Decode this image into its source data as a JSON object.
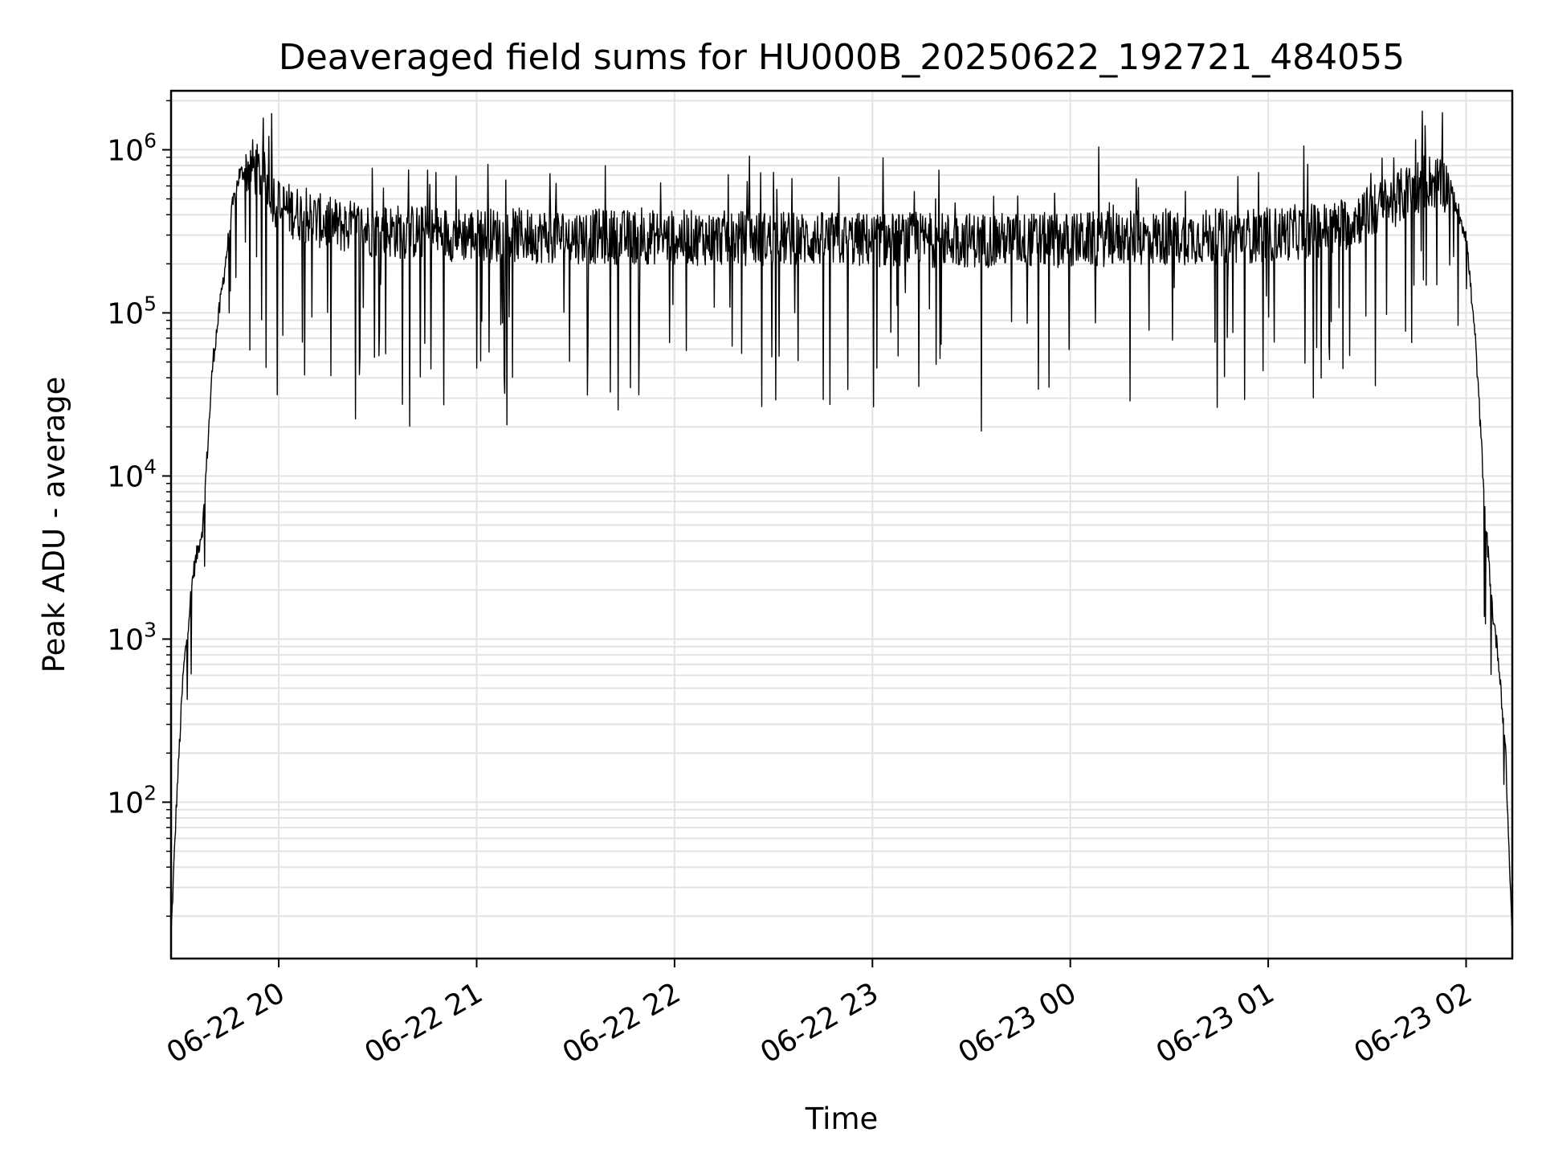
{
  "chart_data": {
    "type": "line",
    "title": "Deaveraged field sums for HU000B_20250622_192721_484055",
    "xlabel": "Time",
    "ylabel": "Peak ADU - average",
    "yscale": "log",
    "grid": true,
    "legend": "none",
    "xlim": [
      "2025-06-22 19:27:21",
      "2025-06-23 02:14:00"
    ],
    "ylim": [
      11,
      2300000
    ],
    "x_ticks": [
      {
        "value": "2025-06-22 20:00",
        "label": "06-22 20"
      },
      {
        "value": "2025-06-22 21:00",
        "label": "06-22 21"
      },
      {
        "value": "2025-06-22 22:00",
        "label": "06-22 22"
      },
      {
        "value": "2025-06-22 23:00",
        "label": "06-22 23"
      },
      {
        "value": "2025-06-23 00:00",
        "label": "06-23 00"
      },
      {
        "value": "2025-06-23 01:00",
        "label": "06-23 01"
      },
      {
        "value": "2025-06-23 02:00",
        "label": "06-23 02"
      }
    ],
    "y_ticks": [
      {
        "value": 100,
        "base": "10",
        "exp": "2"
      },
      {
        "value": 1000,
        "base": "10",
        "exp": "3"
      },
      {
        "value": 10000,
        "base": "10",
        "exp": "4"
      },
      {
        "value": 100000,
        "base": "10",
        "exp": "5"
      },
      {
        "value": 1000000,
        "base": "10",
        "exp": "6"
      }
    ],
    "series": [
      {
        "color": "#000000",
        "envelope": {
          "description_free": true,
          "x": [
            "2025-06-22 19:27:21",
            "2025-06-22 19:29",
            "2025-06-22 19:31",
            "2025-06-22 19:34",
            "2025-06-22 19:37",
            "2025-06-22 19:40",
            "2025-06-22 19:43",
            "2025-06-22 19:46",
            "2025-06-22 19:48",
            "2025-06-22 19:52",
            "2025-06-22 19:56",
            "2025-06-22 20:00",
            "2025-06-22 20:15",
            "2025-06-22 20:30",
            "2025-06-22 21:00",
            "2025-06-22 22:00",
            "2025-06-22 23:00",
            "2025-06-23 00:00",
            "2025-06-23 01:00",
            "2025-06-23 01:20",
            "2025-06-23 01:35",
            "2025-06-23 01:48",
            "2025-06-23 01:55",
            "2025-06-23 02:00",
            "2025-06-23 02:03",
            "2025-06-23 02:06",
            "2025-06-23 02:08",
            "2025-06-23 02:10",
            "2025-06-23 02:12",
            "2025-06-23 02:13",
            "2025-06-23 02:14"
          ],
          "y": [
            15,
            100,
            600,
            2500,
            5000,
            50000,
            150000,
            450000,
            700000,
            800000,
            650000,
            450000,
            350000,
            320000,
            300000,
            290000,
            280000,
            280000,
            300000,
            330000,
            450000,
            650000,
            600000,
            300000,
            60000,
            5000,
            1500,
            700,
            200,
            50,
            15
          ]
        }
      }
    ]
  }
}
